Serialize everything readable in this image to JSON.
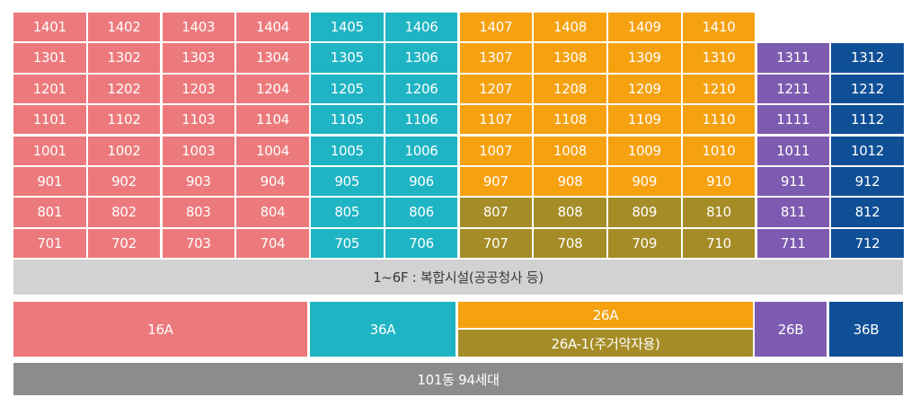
{
  "colors": {
    "16A": "#ec7a7c",
    "36A": "#1fb4c3",
    "26A": "#f6a10f",
    "26A-1": "#a58c26",
    "26B": "#7d5bb0",
    "36B": "#0f4f96",
    "facility": "#d2d2d2",
    "total": "#8c8c8c"
  },
  "floors": [
    {
      "floor": 14,
      "units": [
        {
          "no": "1401",
          "type": "16A"
        },
        {
          "no": "1402",
          "type": "16A"
        },
        {
          "no": "1403",
          "type": "16A"
        },
        {
          "no": "1404",
          "type": "16A"
        },
        {
          "no": "1405",
          "type": "36A"
        },
        {
          "no": "1406",
          "type": "36A"
        },
        {
          "no": "1407",
          "type": "26A"
        },
        {
          "no": "1408",
          "type": "26A"
        },
        {
          "no": "1409",
          "type": "26A"
        },
        {
          "no": "1410",
          "type": "26A"
        }
      ]
    },
    {
      "floor": 13,
      "units": [
        {
          "no": "1301",
          "type": "16A"
        },
        {
          "no": "1302",
          "type": "16A"
        },
        {
          "no": "1303",
          "type": "16A"
        },
        {
          "no": "1304",
          "type": "16A"
        },
        {
          "no": "1305",
          "type": "36A"
        },
        {
          "no": "1306",
          "type": "36A"
        },
        {
          "no": "1307",
          "type": "26A"
        },
        {
          "no": "1308",
          "type": "26A"
        },
        {
          "no": "1309",
          "type": "26A"
        },
        {
          "no": "1310",
          "type": "26A"
        },
        {
          "no": "1311",
          "type": "26B"
        },
        {
          "no": "1312",
          "type": "36B"
        }
      ]
    },
    {
      "floor": 12,
      "units": [
        {
          "no": "1201",
          "type": "16A"
        },
        {
          "no": "1202",
          "type": "16A"
        },
        {
          "no": "1203",
          "type": "16A"
        },
        {
          "no": "1204",
          "type": "16A"
        },
        {
          "no": "1205",
          "type": "36A"
        },
        {
          "no": "1206",
          "type": "36A"
        },
        {
          "no": "1207",
          "type": "26A"
        },
        {
          "no": "1208",
          "type": "26A"
        },
        {
          "no": "1209",
          "type": "26A"
        },
        {
          "no": "1210",
          "type": "26A"
        },
        {
          "no": "1211",
          "type": "26B"
        },
        {
          "no": "1212",
          "type": "36B"
        }
      ]
    },
    {
      "floor": 11,
      "units": [
        {
          "no": "1101",
          "type": "16A"
        },
        {
          "no": "1102",
          "type": "16A"
        },
        {
          "no": "1103",
          "type": "16A"
        },
        {
          "no": "1104",
          "type": "16A"
        },
        {
          "no": "1105",
          "type": "36A"
        },
        {
          "no": "1106",
          "type": "36A"
        },
        {
          "no": "1107",
          "type": "26A"
        },
        {
          "no": "1108",
          "type": "26A"
        },
        {
          "no": "1109",
          "type": "26A"
        },
        {
          "no": "1110",
          "type": "26A"
        },
        {
          "no": "1111",
          "type": "26B"
        },
        {
          "no": "1112",
          "type": "36B"
        }
      ]
    },
    {
      "floor": 10,
      "units": [
        {
          "no": "1001",
          "type": "16A"
        },
        {
          "no": "1002",
          "type": "16A"
        },
        {
          "no": "1003",
          "type": "16A"
        },
        {
          "no": "1004",
          "type": "16A"
        },
        {
          "no": "1005",
          "type": "36A"
        },
        {
          "no": "1006",
          "type": "36A"
        },
        {
          "no": "1007",
          "type": "26A"
        },
        {
          "no": "1008",
          "type": "26A"
        },
        {
          "no": "1009",
          "type": "26A"
        },
        {
          "no": "1010",
          "type": "26A"
        },
        {
          "no": "1011",
          "type": "26B"
        },
        {
          "no": "1012",
          "type": "36B"
        }
      ]
    },
    {
      "floor": 9,
      "units": [
        {
          "no": "901",
          "type": "16A"
        },
        {
          "no": "902",
          "type": "16A"
        },
        {
          "no": "903",
          "type": "16A"
        },
        {
          "no": "904",
          "type": "16A"
        },
        {
          "no": "905",
          "type": "36A"
        },
        {
          "no": "906",
          "type": "36A"
        },
        {
          "no": "907",
          "type": "26A"
        },
        {
          "no": "908",
          "type": "26A"
        },
        {
          "no": "909",
          "type": "26A"
        },
        {
          "no": "910",
          "type": "26A"
        },
        {
          "no": "911",
          "type": "26B"
        },
        {
          "no": "912",
          "type": "36B"
        }
      ]
    },
    {
      "floor": 8,
      "units": [
        {
          "no": "801",
          "type": "16A"
        },
        {
          "no": "802",
          "type": "16A"
        },
        {
          "no": "803",
          "type": "16A"
        },
        {
          "no": "804",
          "type": "16A"
        },
        {
          "no": "805",
          "type": "36A"
        },
        {
          "no": "806",
          "type": "36A"
        },
        {
          "no": "807",
          "type": "26A-1"
        },
        {
          "no": "808",
          "type": "26A-1"
        },
        {
          "no": "809",
          "type": "26A-1"
        },
        {
          "no": "810",
          "type": "26A-1"
        },
        {
          "no": "811",
          "type": "26B"
        },
        {
          "no": "812",
          "type": "36B"
        }
      ]
    },
    {
      "floor": 7,
      "units": [
        {
          "no": "701",
          "type": "16A"
        },
        {
          "no": "702",
          "type": "16A"
        },
        {
          "no": "703",
          "type": "16A"
        },
        {
          "no": "704",
          "type": "16A"
        },
        {
          "no": "705",
          "type": "36A"
        },
        {
          "no": "706",
          "type": "36A"
        },
        {
          "no": "707",
          "type": "26A-1"
        },
        {
          "no": "708",
          "type": "26A-1"
        },
        {
          "no": "709",
          "type": "26A-1"
        },
        {
          "no": "710",
          "type": "26A-1"
        },
        {
          "no": "711",
          "type": "26B"
        },
        {
          "no": "712",
          "type": "36B"
        }
      ]
    }
  ],
  "facility_label": "1~6F : 복합시설(공공청사 등)",
  "legend": {
    "16A": "16A",
    "36A": "36A",
    "26A": "26A",
    "26A-1": "26A-1(주거약자용)",
    "26B": "26B",
    "36B": "36B"
  },
  "total_label": "101동 94세대"
}
